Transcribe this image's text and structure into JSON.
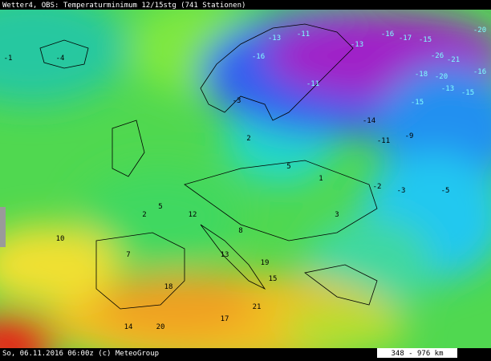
{
  "header": {
    "title": "Wetter4, OBS: Temperaturminimum 12/15stg (741 Stationen)"
  },
  "footer": {
    "text": "So, 06.11.2016 06:00z (c) MeteoGroup",
    "scale": "348 - 976 km"
  },
  "stations": [
    -16,
    -13,
    -11,
    -13,
    -16,
    -17,
    -15,
    -20,
    -26,
    -21,
    -20,
    -18,
    -16,
    -15,
    -13,
    -15,
    -11,
    -14,
    -11,
    -9,
    -5,
    -3,
    -1,
    -4,
    -3,
    2,
    5,
    1,
    3,
    10,
    5,
    2,
    7,
    13,
    15,
    19,
    21,
    18,
    14,
    20,
    17,
    12,
    -2,
    8
  ]
}
